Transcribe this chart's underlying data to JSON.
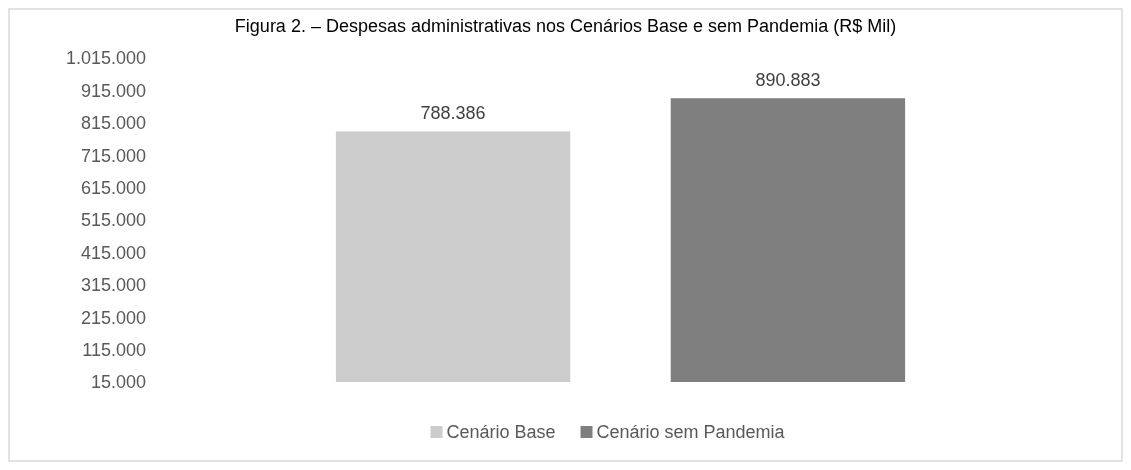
{
  "chart_data": {
    "type": "bar",
    "title": "Figura 2. – Despesas administrativas nos Cenários Base e sem Pandemia (R$ Mil)",
    "categories": [
      null
    ],
    "series": [
      {
        "name": "Cenário Base",
        "color": "#cccccc",
        "values": [
          788386
        ],
        "value_labels": [
          "788.386"
        ]
      },
      {
        "name": "Cenário sem Pandemia",
        "color": "#7f7f7f",
        "values": [
          890883
        ],
        "value_labels": [
          "890.883"
        ]
      }
    ],
    "ylim": [
      15000,
      1015000
    ],
    "yticks": [
      {
        "value": 15000,
        "label": "15.000"
      },
      {
        "value": 115000,
        "label": "115.000"
      },
      {
        "value": 215000,
        "label": "215.000"
      },
      {
        "value": 315000,
        "label": "315.000"
      },
      {
        "value": 415000,
        "label": "415.000"
      },
      {
        "value": 515000,
        "label": "515.000"
      },
      {
        "value": 615000,
        "label": "615.000"
      },
      {
        "value": 715000,
        "label": "715.000"
      },
      {
        "value": 815000,
        "label": "815.000"
      },
      {
        "value": 915000,
        "label": "915.000"
      },
      {
        "value": 1015000,
        "label": "1.015.000"
      }
    ],
    "legend": "bottom"
  }
}
